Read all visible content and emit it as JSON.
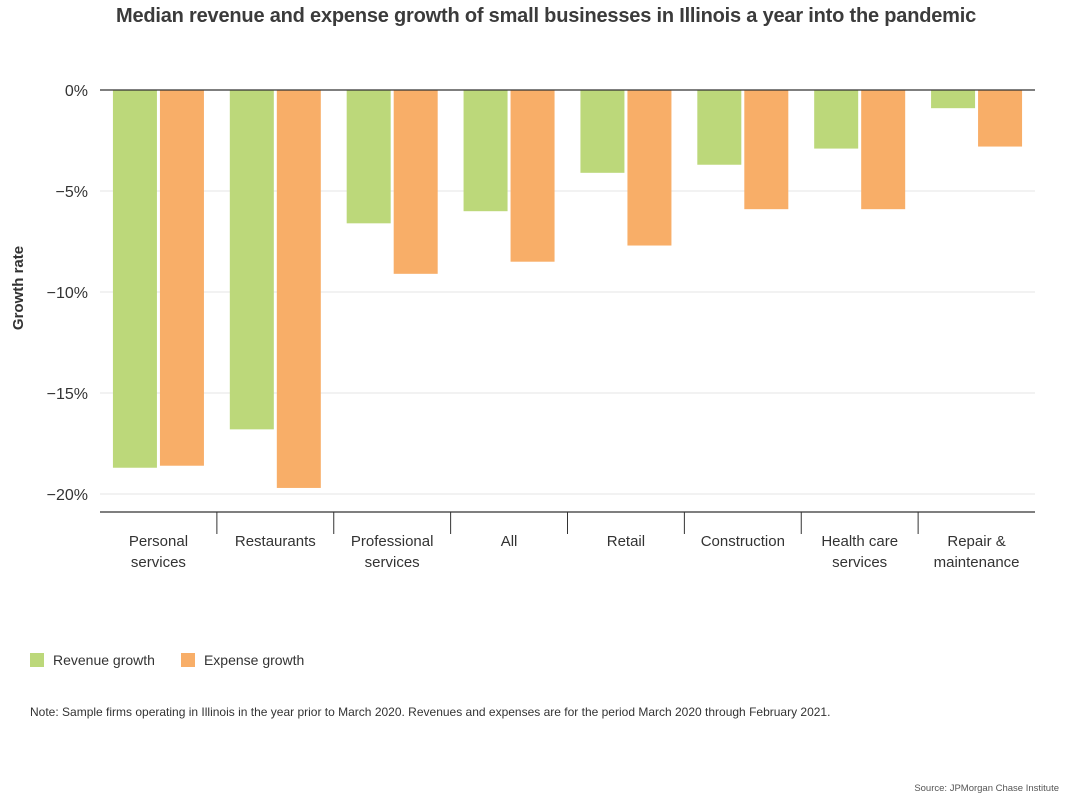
{
  "chart_data": {
    "type": "bar",
    "title": "Median revenue and expense growth of small businesses in Illinois a year into the pandemic",
    "ylabel": "Growth rate",
    "xlabel": "",
    "ylim": [
      -20,
      0
    ],
    "yticks": [
      0,
      -5,
      -10,
      -15,
      -20
    ],
    "ytick_labels": [
      "0%",
      "−5%",
      "−10%",
      "−15%",
      "−20%"
    ],
    "categories": [
      [
        "Personal",
        "services"
      ],
      [
        "Restaurants"
      ],
      [
        "Professional",
        "services"
      ],
      [
        "All"
      ],
      [
        "Retail"
      ],
      [
        "Construction"
      ],
      [
        "Health care",
        "services"
      ],
      [
        "Repair &",
        "maintenance"
      ]
    ],
    "series": [
      {
        "name": "Revenue growth",
        "color": "#bcd87a",
        "values": [
          -18.7,
          -16.8,
          -6.6,
          -6.0,
          -4.1,
          -3.7,
          -2.9,
          -0.9
        ]
      },
      {
        "name": "Expense growth",
        "color": "#f8ae68",
        "values": [
          -18.6,
          -19.7,
          -9.1,
          -8.5,
          -7.7,
          -5.9,
          -5.9,
          -2.8
        ]
      }
    ],
    "grid": true,
    "legend_position": "bottom-left",
    "note": "Note: Sample firms operating in Illinois in the year prior to March 2020. Revenues and expenses are for the period March 2020 through February 2021.",
    "source": "Source: JPMorgan Chase Institute"
  }
}
